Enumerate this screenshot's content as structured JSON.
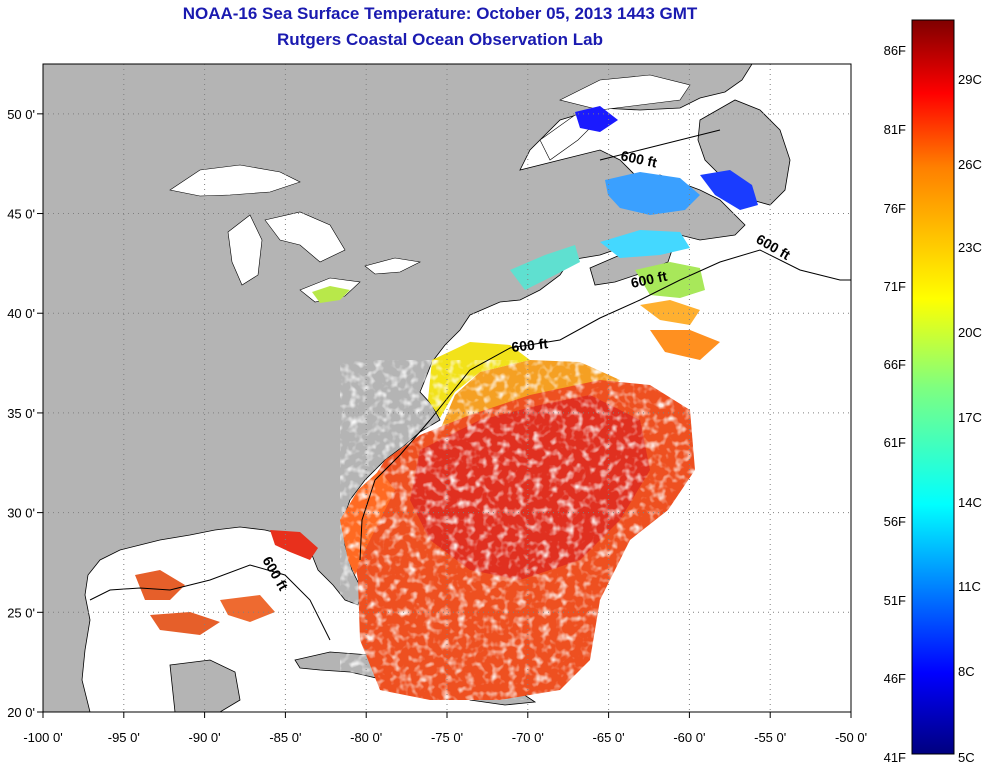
{
  "header": {
    "title": "NOAA-16 Sea Surface Temperature:  October 05, 2013 1443 GMT",
    "subtitle": "Rutgers Coastal Ocean Observation Lab"
  },
  "map": {
    "lon_range": [
      -100,
      -50
    ],
    "lat_range": [
      20,
      52.5
    ],
    "lon_ticks": [
      {
        "lon": -100,
        "label": "-100 0'"
      },
      {
        "lon": -95,
        "label": "-95 0'"
      },
      {
        "lon": -90,
        "label": "-90 0'"
      },
      {
        "lon": -85,
        "label": "-85 0'"
      },
      {
        "lon": -80,
        "label": "-80 0'"
      },
      {
        "lon": -75,
        "label": "-75 0'"
      },
      {
        "lon": -70,
        "label": "-70 0'"
      },
      {
        "lon": -65,
        "label": "-65 0'"
      },
      {
        "lon": -60,
        "label": "-60 0'"
      },
      {
        "lon": -55,
        "label": "-55 0'"
      },
      {
        "lon": -50,
        "label": "-50 0'"
      }
    ],
    "lat_ticks": [
      {
        "lat": 50,
        "label": "50 0'"
      },
      {
        "lat": 45,
        "label": "45 0'"
      },
      {
        "lat": 40,
        "label": "40 0'"
      },
      {
        "lat": 35,
        "label": "35 0'"
      },
      {
        "lat": 30,
        "label": "30 0'"
      },
      {
        "lat": 25,
        "label": "25 0'"
      },
      {
        "lat": 20,
        "label": "20 0'"
      }
    ],
    "contour_labels": [
      "600 ft",
      "600 ft",
      "600 ft",
      "600 ft",
      "600 ft"
    ],
    "colors": {
      "land": "#b4b4b4",
      "ocean_nodata": "#ffffff",
      "gridline": "#808080"
    }
  },
  "colorbar": {
    "fahrenheit_labels": [
      "86F",
      "81F",
      "76F",
      "71F",
      "66F",
      "61F",
      "56F",
      "51F",
      "46F",
      "41F"
    ],
    "celsius_labels": [
      "29C",
      "26C",
      "23C",
      "20C",
      "17C",
      "14C",
      "11C",
      "8C",
      "5C"
    ],
    "range_c": [
      5,
      30
    ],
    "colormap": [
      "#00007f",
      "#0000ff",
      "#007fff",
      "#00ffff",
      "#7fff7f",
      "#ffff00",
      "#ff7f00",
      "#ff0000",
      "#7f0000"
    ]
  }
}
